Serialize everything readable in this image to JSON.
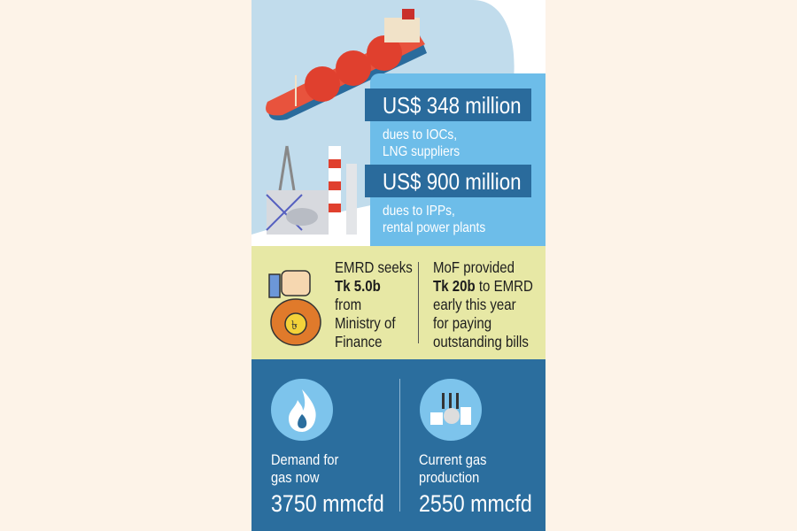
{
  "colors": {
    "page_bg": "#fdf3e8",
    "sky": "#c1dcec",
    "info_box": "#6dbde9",
    "bar": "#2a6b9c",
    "yellow_band": "#e7e8a5",
    "dark_band": "#2b6e9e",
    "circle": "#7dc4ec"
  },
  "dues": [
    {
      "amount": "US$ 348 million",
      "line1": "dues to IOCs,",
      "line2": "LNG suppliers"
    },
    {
      "amount": "US$ 900 million",
      "line1": "dues to IPPs,",
      "line2": "rental power plants"
    }
  ],
  "funding": {
    "left": {
      "l1": "EMRD seeks",
      "bold": "Tk 5.0b",
      "l3": "from",
      "l4": "Ministry of",
      "l5": "Finance"
    },
    "right": {
      "l1": "MoF provided",
      "bold": "Tk 20b",
      "l2rest": " to EMRD",
      "l3": "early this year",
      "l4": "for paying",
      "l5": "outstanding bills"
    }
  },
  "gas": [
    {
      "icon": "flame-icon",
      "l1": "Demand for",
      "l2": "gas now",
      "value": "3750 mmcfd"
    },
    {
      "icon": "factory-icon",
      "l1": "Current gas",
      "l2": "production",
      "value": "2550 mmcfd"
    }
  ]
}
